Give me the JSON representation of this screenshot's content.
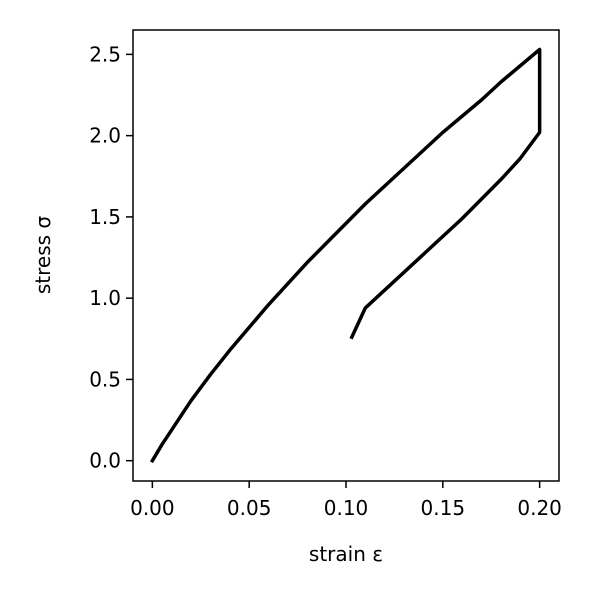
{
  "chart_data": {
    "type": "line",
    "title": "",
    "xlabel": "strain ε",
    "ylabel": "stress σ",
    "xlim": [
      -0.01,
      0.21
    ],
    "ylim": [
      -0.125,
      2.65
    ],
    "grid": false,
    "line_color": "#000000",
    "x_ticks": [
      0.0,
      0.05,
      0.1,
      0.15,
      0.2
    ],
    "x_tick_labels": [
      "0.00",
      "0.05",
      "0.10",
      "0.15",
      "0.20"
    ],
    "y_ticks": [
      0.0,
      0.5,
      1.0,
      1.5,
      2.0,
      2.5
    ],
    "y_tick_labels": [
      "0.0",
      "0.5",
      "1.0",
      "1.5",
      "2.0",
      "2.5"
    ],
    "series": [
      {
        "x": [
          0.0,
          0.005,
          0.01,
          0.02,
          0.03,
          0.04,
          0.05,
          0.06,
          0.07,
          0.08,
          0.09,
          0.1,
          0.11,
          0.12,
          0.13,
          0.14,
          0.15,
          0.16,
          0.17,
          0.18,
          0.19,
          0.2,
          0.2,
          0.2,
          0.19,
          0.18,
          0.17,
          0.16,
          0.15,
          0.14,
          0.13,
          0.12,
          0.11,
          0.103
        ],
        "y": [
          0.0,
          0.1,
          0.19,
          0.37,
          0.53,
          0.68,
          0.82,
          0.96,
          1.09,
          1.22,
          1.34,
          1.46,
          1.58,
          1.69,
          1.8,
          1.91,
          2.02,
          2.12,
          2.22,
          2.33,
          2.43,
          2.53,
          2.3,
          2.02,
          1.86,
          1.73,
          1.61,
          1.49,
          1.38,
          1.27,
          1.16,
          1.05,
          0.94,
          0.76
        ]
      }
    ]
  }
}
